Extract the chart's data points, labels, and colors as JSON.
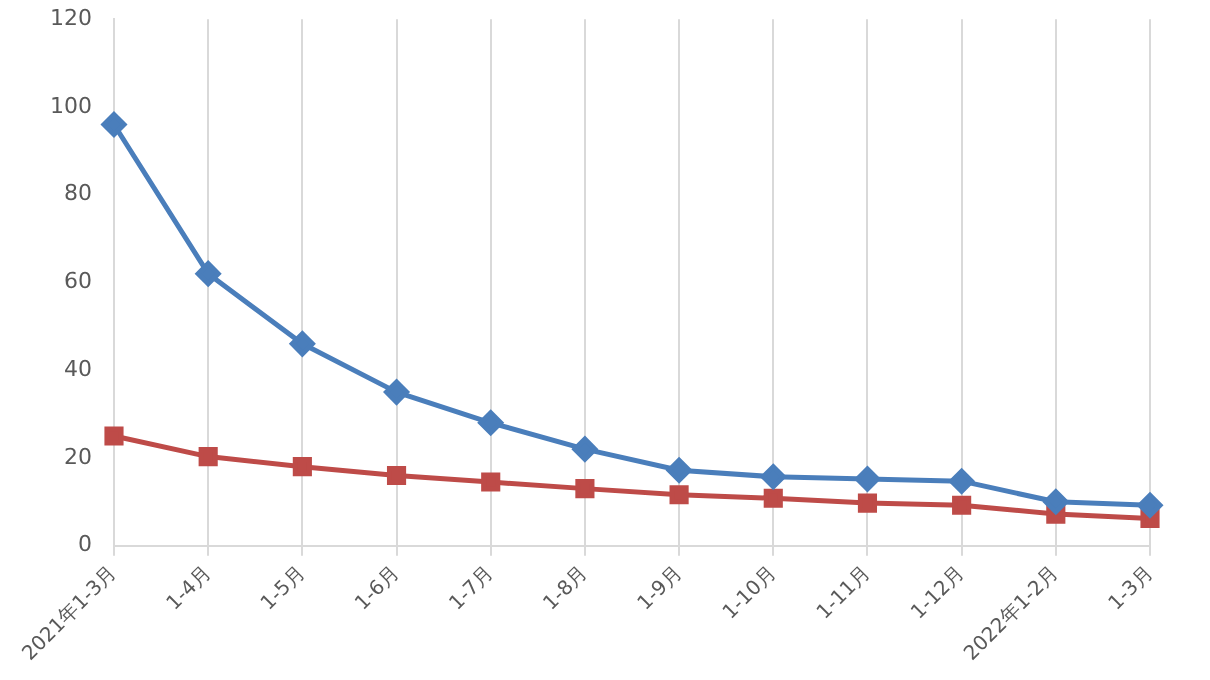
{
  "chart_data": {
    "type": "line",
    "categories": [
      "2021年1-3月",
      "1-4月",
      "1-5月",
      "1-6月",
      "1-7月",
      "1-8月",
      "1-9月",
      "1-10月",
      "1-11月",
      "1-12月",
      "2022年1-2月",
      "1-3月"
    ],
    "series": [
      {
        "color": "#4a7ebb",
        "marker": "diamond",
        "values": [
          96,
          62,
          46,
          35,
          28,
          22,
          17.2,
          15.7,
          15.2,
          14.7,
          10,
          9.2
        ]
      },
      {
        "color": "#be4b48",
        "marker": "square",
        "values": [
          25,
          20.3,
          18,
          16,
          14.5,
          13,
          11.6,
          10.8,
          9.7,
          9.2,
          7.2,
          6.2
        ]
      }
    ],
    "ylim": [
      0,
      120
    ],
    "yticks": [
      0,
      20,
      40,
      60,
      80,
      100,
      120
    ],
    "grid": "x",
    "legend": false
  }
}
